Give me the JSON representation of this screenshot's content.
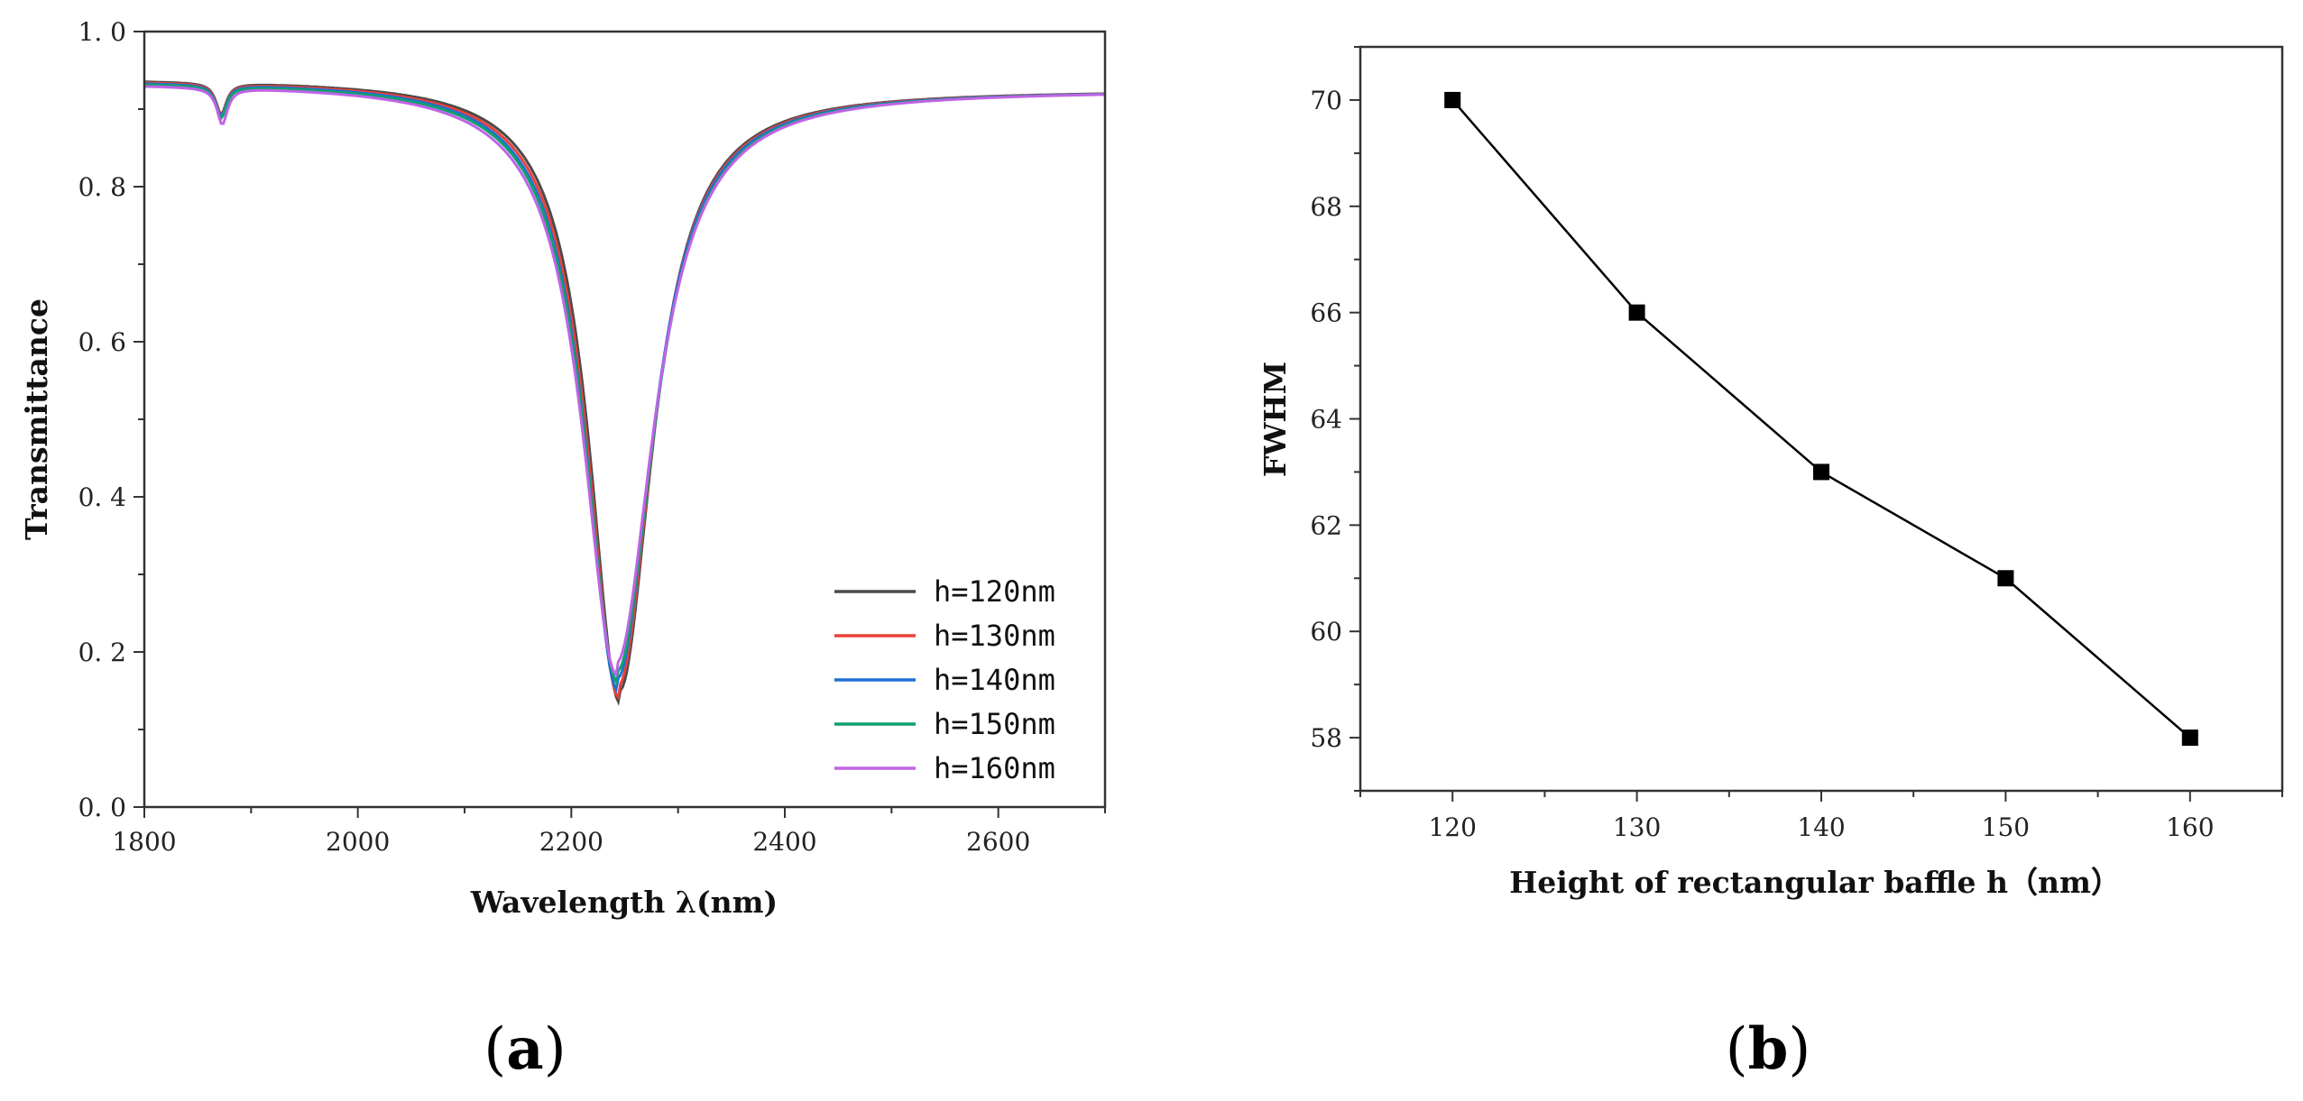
{
  "chart_data": [
    {
      "type": "line",
      "panel_label_open": "(",
      "panel_label_letter": "a",
      "panel_label_close": ")",
      "xlabel": "Wavelength λ(nm)",
      "ylabel": "Transmittance",
      "xlim": [
        1800,
        2700
      ],
      "ylim": [
        0.0,
        1.0
      ],
      "xticks": [
        1800,
        2000,
        2200,
        2400,
        2600
      ],
      "xtick_labels": [
        "1800",
        "2000",
        "2200",
        "2400",
        "2600"
      ],
      "yticks": [
        0.0,
        0.2,
        0.4,
        0.6,
        0.8,
        1.0
      ],
      "ytick_labels": [
        "0. 0",
        "0. 2",
        "0. 4",
        "0. 6",
        "0. 8",
        "1. 0"
      ],
      "legend_position": "bottom-right",
      "series": [
        {
          "name": "h=120nm",
          "color": "#4a4a4a",
          "baseline": 0.94,
          "dip_center": 2245,
          "dip_min": 0.15,
          "dip_width": 34,
          "small_dip_center": 1872,
          "small_dip_min": 0.9
        },
        {
          "name": "h=130nm",
          "color": "#e8413a",
          "baseline": 0.939,
          "dip_center": 2244,
          "dip_min": 0.157,
          "dip_width": 35,
          "small_dip_center": 1872,
          "small_dip_min": 0.9
        },
        {
          "name": "h=140nm",
          "color": "#1f6fd6",
          "baseline": 0.938,
          "dip_center": 2243,
          "dip_min": 0.166,
          "dip_width": 36,
          "small_dip_center": 1872,
          "small_dip_min": 0.898
        },
        {
          "name": "h=150nm",
          "color": "#10a070",
          "baseline": 0.937,
          "dip_center": 2243,
          "dip_min": 0.176,
          "dip_width": 37,
          "small_dip_center": 1872,
          "small_dip_min": 0.896
        },
        {
          "name": "h=160nm",
          "color": "#c063e6",
          "baseline": 0.935,
          "dip_center": 2242,
          "dip_min": 0.186,
          "dip_width": 38,
          "small_dip_center": 1873,
          "small_dip_min": 0.888
        }
      ]
    },
    {
      "type": "line",
      "panel_label_open": "(",
      "panel_label_letter": "b",
      "panel_label_close": ")",
      "xlabel": "Height of rectangular baffle h（nm）",
      "ylabel": "FWHM",
      "xlim": [
        115,
        165
      ],
      "ylim": [
        57,
        71
      ],
      "xticks": [
        120,
        130,
        140,
        150,
        160
      ],
      "xtick_labels": [
        "120",
        "130",
        "140",
        "150",
        "160"
      ],
      "yticks": [
        58,
        60,
        62,
        64,
        66,
        68,
        70
      ],
      "ytick_labels": [
        "58",
        "60",
        "62",
        "64",
        "66",
        "68",
        "70"
      ],
      "series": [
        {
          "name": "FWHM",
          "color": "#000000",
          "x": [
            120,
            130,
            140,
            150,
            160
          ],
          "y": [
            70,
            66,
            63,
            61,
            58
          ]
        }
      ]
    }
  ]
}
